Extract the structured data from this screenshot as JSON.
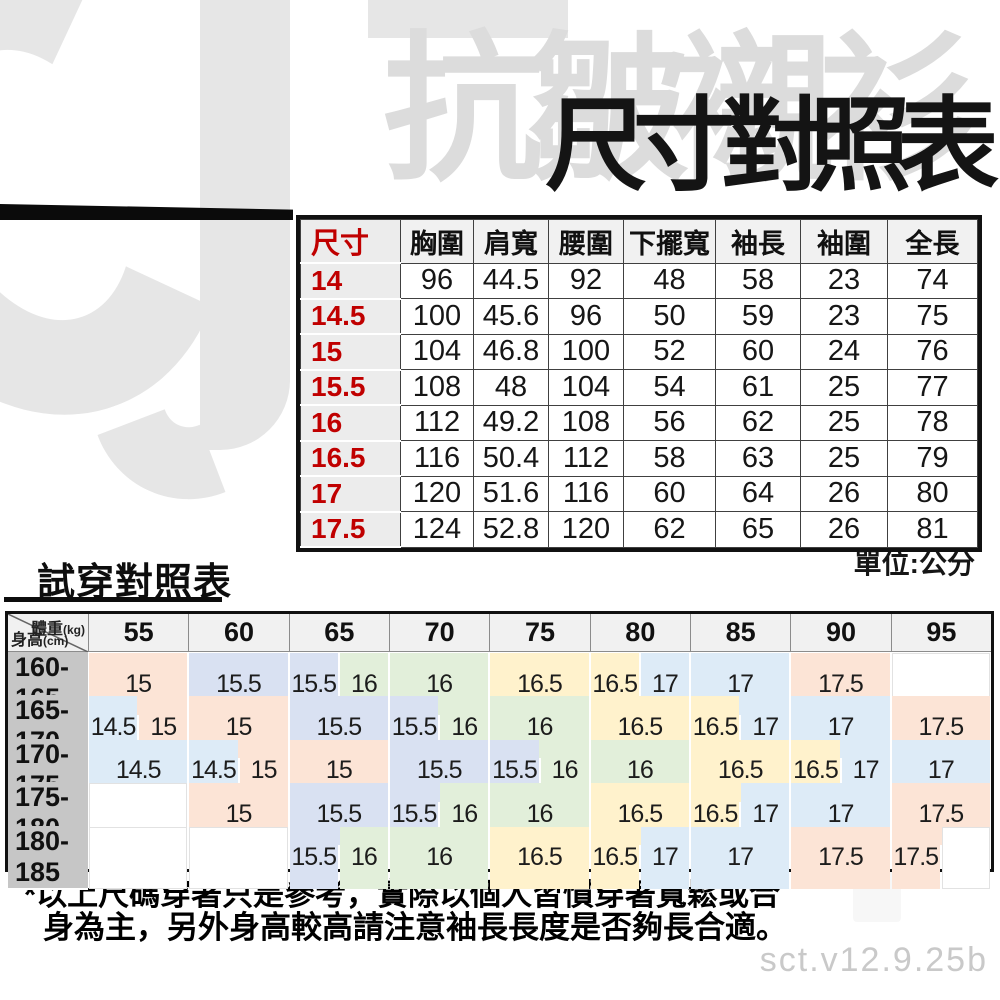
{
  "header": {
    "product_name": "抗皺襯衫",
    "title": "尺寸對照表"
  },
  "size_table": {
    "columns": [
      "尺寸",
      "胸圍",
      "肩寬",
      "腰圍",
      "下擺寬",
      "袖長",
      "袖圍",
      "全長"
    ],
    "rows": [
      {
        "size": "14",
        "values": [
          "96",
          "44.5",
          "92",
          "48",
          "58",
          "23",
          "74"
        ]
      },
      {
        "size": "14.5",
        "values": [
          "100",
          "45.6",
          "96",
          "50",
          "59",
          "23",
          "75"
        ]
      },
      {
        "size": "15",
        "values": [
          "104",
          "46.8",
          "100",
          "52",
          "60",
          "24",
          "76"
        ]
      },
      {
        "size": "15.5",
        "values": [
          "108",
          "48",
          "104",
          "54",
          "61",
          "25",
          "77"
        ]
      },
      {
        "size": "16",
        "values": [
          "112",
          "49.2",
          "108",
          "56",
          "62",
          "25",
          "78"
        ]
      },
      {
        "size": "16.5",
        "values": [
          "116",
          "50.4",
          "112",
          "58",
          "63",
          "25",
          "79"
        ]
      },
      {
        "size": "17",
        "values": [
          "120",
          "51.6",
          "116",
          "60",
          "64",
          "26",
          "80"
        ]
      },
      {
        "size": "17.5",
        "values": [
          "124",
          "52.8",
          "120",
          "62",
          "65",
          "26",
          "81"
        ]
      }
    ],
    "unit_note": "單位:公分"
  },
  "fit_table": {
    "title": "試穿對照表",
    "corner": {
      "weight_label": "體重",
      "weight_unit": "(kg)",
      "height_label": "身高",
      "height_unit": "(cm)"
    },
    "weight_headers": [
      "55",
      "60",
      "65",
      "70",
      "75",
      "80",
      "85",
      "90",
      "95"
    ],
    "rows": [
      {
        "height": "160-165",
        "cells": [
          {
            "v": "15",
            "s": 2
          },
          {
            "v": "15.5",
            "s": 2
          },
          {
            "v": "15.5",
            "s": 1
          },
          {
            "v": "16",
            "s": 1
          },
          {
            "v": "16",
            "s": 2
          },
          {
            "v": "16.5",
            "s": 2
          },
          {
            "v": "16.5",
            "s": 1
          },
          {
            "v": "17",
            "s": 1
          },
          {
            "v": "17",
            "s": 2
          },
          {
            "v": "17.5",
            "s": 2
          },
          {
            "v": "",
            "s": 2
          }
        ]
      },
      {
        "height": "165-170",
        "cells": [
          {
            "v": "14.5",
            "s": 1
          },
          {
            "v": "15",
            "s": 1
          },
          {
            "v": "15",
            "s": 2
          },
          {
            "v": "15.5",
            "s": 2
          },
          {
            "v": "15.5",
            "s": 1
          },
          {
            "v": "16",
            "s": 1
          },
          {
            "v": "16",
            "s": 2
          },
          {
            "v": "16.5",
            "s": 2
          },
          {
            "v": "16.5",
            "s": 1
          },
          {
            "v": "17",
            "s": 1
          },
          {
            "v": "17",
            "s": 2
          },
          {
            "v": "17.5",
            "s": 2
          }
        ]
      },
      {
        "height": "170-175",
        "cells": [
          {
            "v": "14.5",
            "s": 2
          },
          {
            "v": "14.5",
            "s": 1
          },
          {
            "v": "15",
            "s": 1
          },
          {
            "v": "15",
            "s": 2
          },
          {
            "v": "15.5",
            "s": 2
          },
          {
            "v": "15.5",
            "s": 1
          },
          {
            "v": "16",
            "s": 1
          },
          {
            "v": "16",
            "s": 2
          },
          {
            "v": "16.5",
            "s": 2
          },
          {
            "v": "16.5",
            "s": 1
          },
          {
            "v": "17",
            "s": 1
          },
          {
            "v": "17",
            "s": 2
          }
        ]
      },
      {
        "height": "175-180",
        "cells": [
          {
            "v": "",
            "s": 2
          },
          {
            "v": "15",
            "s": 2
          },
          {
            "v": "15.5",
            "s": 2
          },
          {
            "v": "15.5",
            "s": 1
          },
          {
            "v": "16",
            "s": 1
          },
          {
            "v": "16",
            "s": 2
          },
          {
            "v": "16.5",
            "s": 2
          },
          {
            "v": "16.5",
            "s": 1
          },
          {
            "v": "17",
            "s": 1
          },
          {
            "v": "17",
            "s": 2
          },
          {
            "v": "17.5",
            "s": 2
          }
        ]
      },
      {
        "height": "180-185",
        "cells": [
          {
            "v": "",
            "s": 2
          },
          {
            "v": "",
            "s": 2
          },
          {
            "v": "15.5",
            "s": 1
          },
          {
            "v": "16",
            "s": 1
          },
          {
            "v": "16",
            "s": 2
          },
          {
            "v": "16.5",
            "s": 2
          },
          {
            "v": "16.5",
            "s": 1
          },
          {
            "v": "17",
            "s": 1
          },
          {
            "v": "17",
            "s": 2
          },
          {
            "v": "17.5",
            "s": 2
          },
          {
            "v": "17.5",
            "s": 1
          },
          {
            "v": "",
            "s": 1
          }
        ]
      }
    ]
  },
  "size_colors": {
    "14.5": "#ddebf7",
    "15": "#fce4d6",
    "15.5": "#d9e1f2",
    "16": "#e2efda",
    "16.5": "#fff2cc",
    "17": "#ddebf7",
    "17.5": "#fce4d6"
  },
  "footnote": {
    "line1": "*以上尺碼穿著只是參考，實際以個人習慣穿著寬鬆或合",
    "line2": "身為主，另外身高較高請注意袖長長度是否夠長合適。"
  },
  "version": "sct.v12.9.25b"
}
